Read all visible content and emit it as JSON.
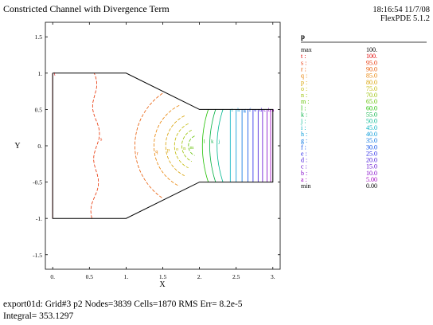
{
  "header": {
    "title": "Constricted Channel with Divergence Term",
    "timestamp": "18:16:54 11/7/08",
    "version": "FlexPDE 5.1.2"
  },
  "footer": {
    "stats_line": "export01d:  Grid#3  p2  Nodes=3839 Cells=1870 RMS Err= 8.2e-5",
    "integral_line": "Integral=   353.1297"
  },
  "colors": {
    "boundary": "#000000",
    "contour_hot": "#e00000",
    "contour_cool": "#8000c0"
  },
  "chart_data": {
    "type": "contour",
    "title": "Constricted Channel with Divergence Term",
    "xlabel": "X",
    "ylabel": "Y",
    "xlim": [
      -0.1,
      3.1
    ],
    "ylim": [
      -1.7,
      1.7
    ],
    "xticks": [
      {
        "value": 0,
        "label": "0."
      },
      {
        "value": 0.5,
        "label": "0.5"
      },
      {
        "value": 1,
        "label": "1."
      },
      {
        "value": 1.5,
        "label": "1.5"
      },
      {
        "value": 2,
        "label": "2."
      },
      {
        "value": 2.5,
        "label": "2.5"
      },
      {
        "value": 3,
        "label": "3."
      }
    ],
    "yticks": [
      {
        "value": 1.5,
        "label": "1.5"
      },
      {
        "value": 1,
        "label": "1."
      },
      {
        "value": 0.5,
        "label": "0.5"
      },
      {
        "value": 0,
        "label": "0."
      },
      {
        "value": -0.5,
        "label": "-0.5"
      },
      {
        "value": -1,
        "label": "-1."
      },
      {
        "value": -1.5,
        "label": "-1.5"
      }
    ],
    "boundary": [
      [
        0,
        1
      ],
      [
        1,
        1
      ],
      [
        2,
        0.5
      ],
      [
        3,
        0.5
      ],
      [
        3,
        -0.5
      ],
      [
        2,
        -0.5
      ],
      [
        1,
        -1
      ],
      [
        0,
        -1
      ],
      [
        0,
        1
      ]
    ],
    "legend": {
      "variable": "p",
      "max_label": "max",
      "max_value": "100.",
      "min_label": "min",
      "min_value": "0.00",
      "levels": [
        {
          "key": "t :",
          "value": "100.",
          "color": "#e00000"
        },
        {
          "key": "s :",
          "value": "95.0",
          "color": "#e83000"
        },
        {
          "key": "r :",
          "value": "90.0",
          "color": "#e85800"
        },
        {
          "key": "q :",
          "value": "85.0",
          "color": "#e88000"
        },
        {
          "key": "p :",
          "value": "80.0",
          "color": "#d8a000"
        },
        {
          "key": "o :",
          "value": "75.0",
          "color": "#c0b800"
        },
        {
          "key": "n :",
          "value": "70.0",
          "color": "#98c000"
        },
        {
          "key": "m :",
          "value": "65.0",
          "color": "#60c000"
        },
        {
          "key": "l :",
          "value": "60.0",
          "color": "#20c000"
        },
        {
          "key": "k :",
          "value": "55.0",
          "color": "#00b040"
        },
        {
          "key": "j :",
          "value": "50.0",
          "color": "#00b890"
        },
        {
          "key": "i :",
          "value": "45.0",
          "color": "#00b0c0"
        },
        {
          "key": "h :",
          "value": "40.0",
          "color": "#0098d8"
        },
        {
          "key": "g :",
          "value": "35.0",
          "color": "#0070e0"
        },
        {
          "key": "f :",
          "value": "30.0",
          "color": "#0048e8"
        },
        {
          "key": "e :",
          "value": "25.0",
          "color": "#2020e8"
        },
        {
          "key": "d :",
          "value": "20.0",
          "color": "#4010d8"
        },
        {
          "key": "c :",
          "value": "15.0",
          "color": "#6008d0"
        },
        {
          "key": "b :",
          "value": "10.0",
          "color": "#8000c8"
        },
        {
          "key": "a :",
          "value": "5.00",
          "color": "#a000c0"
        }
      ]
    },
    "contours": [
      {
        "label": "t",
        "type": "line",
        "x": 0.0
      },
      {
        "label": "s",
        "type": "bulge",
        "x_mid": 0.6,
        "x_edge": 0.55
      },
      {
        "label": "r",
        "type": "arc",
        "r": 0.88
      },
      {
        "label": "q",
        "type": "arc",
        "r": 0.62
      },
      {
        "label": "p",
        "type": "arc",
        "r": 0.46
      },
      {
        "label": "o",
        "type": "arc",
        "r": 0.34
      },
      {
        "label": "n",
        "type": "arc",
        "r": 0.24
      },
      {
        "label": "m",
        "type": "arc",
        "r": 0.15
      },
      {
        "label": "l",
        "type": "curve",
        "x_mid": 2.12
      },
      {
        "label": "k",
        "type": "curve",
        "x_mid": 2.22
      },
      {
        "label": "j",
        "type": "curve",
        "x_mid": 2.32
      },
      {
        "label": "i",
        "type": "line",
        "x": 2.42
      },
      {
        "label": "h",
        "type": "line",
        "x": 2.5
      },
      {
        "label": "g",
        "type": "line",
        "x": 2.58
      },
      {
        "label": "f",
        "type": "line",
        "x": 2.66
      },
      {
        "label": "e",
        "type": "line",
        "x": 2.73
      },
      {
        "label": "d",
        "type": "line",
        "x": 2.8
      },
      {
        "label": "c",
        "type": "line",
        "x": 2.86
      },
      {
        "label": "b",
        "type": "line",
        "x": 2.92
      },
      {
        "label": "a",
        "type": "line",
        "x": 2.97
      }
    ]
  }
}
